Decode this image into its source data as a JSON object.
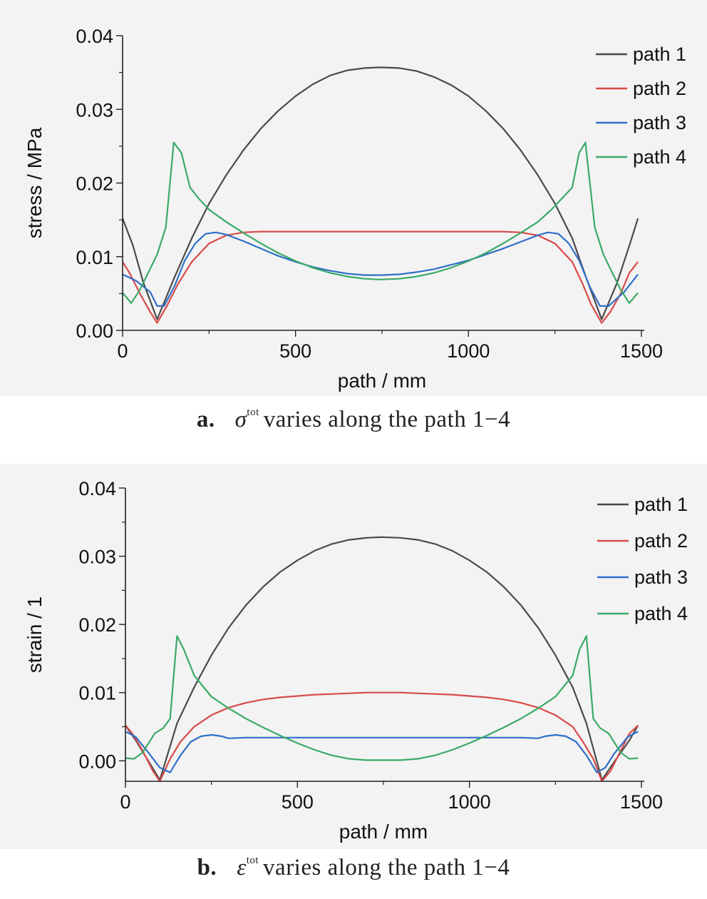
{
  "figures": [
    {
      "caption": {
        "letter": "a.",
        "symbol": "σ",
        "superscript": "tot",
        "text": "varies along the path 1−4"
      }
    },
    {
      "caption": {
        "letter": "b.",
        "symbol": "ε",
        "superscript": "tot",
        "text": "varies along the path 1−4"
      }
    }
  ],
  "chart_data": [
    {
      "type": "line",
      "title": "",
      "xlabel": "path / mm",
      "ylabel": "stress / MPa",
      "xlim": [
        0,
        1500
      ],
      "ylim": [
        0,
        0.04
      ],
      "xticks": [
        "0",
        "500",
        "1000",
        "1500"
      ],
      "yticks": [
        "0.00",
        "0.01",
        "0.02",
        "0.03",
        "0.04"
      ],
      "grid": false,
      "legend_position": "top-right",
      "colors": {
        "path 1": "#4a4a4a",
        "path 2": "#d94a4a",
        "path 3": "#2f6fc9",
        "path 4": "#3aaa68"
      },
      "series": [
        {
          "name": "path 1",
          "x": [
            0,
            30,
            60,
            100,
            150,
            200,
            250,
            300,
            350,
            400,
            450,
            500,
            550,
            600,
            650,
            700,
            745,
            800,
            850,
            900,
            950,
            1000,
            1050,
            1100,
            1150,
            1200,
            1250,
            1300,
            1340,
            1385,
            1430,
            1465,
            1490
          ],
          "values": [
            0.0152,
            0.0115,
            0.0065,
            0.0015,
            0.0072,
            0.0125,
            0.0172,
            0.0211,
            0.0245,
            0.0274,
            0.0298,
            0.0318,
            0.0334,
            0.0346,
            0.0353,
            0.0356,
            0.0357,
            0.0356,
            0.0352,
            0.0344,
            0.0333,
            0.0318,
            0.0298,
            0.0274,
            0.0245,
            0.0211,
            0.0172,
            0.0125,
            0.0072,
            0.0015,
            0.0065,
            0.0115,
            0.0152
          ]
        },
        {
          "name": "path 2",
          "x": [
            0,
            20,
            50,
            80,
            100,
            130,
            160,
            200,
            250,
            300,
            350,
            400,
            500,
            600,
            745,
            900,
            1000,
            1100,
            1150,
            1200,
            1250,
            1300,
            1330,
            1355,
            1385,
            1410,
            1440,
            1465,
            1490
          ],
          "values": [
            0.0093,
            0.0078,
            0.005,
            0.0025,
            0.001,
            0.0035,
            0.0063,
            0.0093,
            0.0118,
            0.0129,
            0.0133,
            0.0134,
            0.0134,
            0.0134,
            0.0134,
            0.0134,
            0.0134,
            0.0134,
            0.0133,
            0.0129,
            0.0118,
            0.0093,
            0.0063,
            0.0035,
            0.001,
            0.0025,
            0.005,
            0.0078,
            0.0093
          ]
        },
        {
          "name": "path 3",
          "x": [
            0,
            40,
            80,
            100,
            120,
            150,
            180,
            210,
            240,
            270,
            300,
            350,
            400,
            450,
            500,
            550,
            600,
            650,
            700,
            745,
            800,
            850,
            900,
            950,
            1000,
            1050,
            1100,
            1150,
            1200,
            1230,
            1260,
            1290,
            1320,
            1350,
            1380,
            1405,
            1450,
            1490
          ],
          "values": [
            0.0076,
            0.0067,
            0.0052,
            0.0033,
            0.0033,
            0.006,
            0.0095,
            0.0118,
            0.0131,
            0.0133,
            0.013,
            0.0121,
            0.0111,
            0.0101,
            0.0093,
            0.0086,
            0.0081,
            0.0077,
            0.0075,
            0.0075,
            0.0076,
            0.0079,
            0.0083,
            0.0089,
            0.0095,
            0.0103,
            0.0111,
            0.012,
            0.0129,
            0.0133,
            0.0131,
            0.0118,
            0.0095,
            0.006,
            0.0033,
            0.0033,
            0.0052,
            0.0076
          ]
        },
        {
          "name": "path 4",
          "x": [
            0,
            25,
            50,
            100,
            125,
            148,
            170,
            195,
            220,
            250,
            300,
            350,
            400,
            450,
            500,
            550,
            600,
            650,
            700,
            745,
            800,
            850,
            900,
            950,
            1000,
            1050,
            1100,
            1150,
            1200,
            1240,
            1270,
            1300,
            1320,
            1338,
            1365,
            1390,
            1440,
            1465,
            1490
          ],
          "values": [
            0.0051,
            0.0037,
            0.0055,
            0.0103,
            0.014,
            0.0255,
            0.0241,
            0.0194,
            0.0179,
            0.0164,
            0.0147,
            0.0132,
            0.0118,
            0.0105,
            0.0094,
            0.0085,
            0.0078,
            0.0073,
            0.007,
            0.0069,
            0.007,
            0.0073,
            0.0078,
            0.0085,
            0.0094,
            0.0105,
            0.0118,
            0.0132,
            0.0147,
            0.0164,
            0.0179,
            0.0194,
            0.0241,
            0.0255,
            0.014,
            0.0103,
            0.0055,
            0.0037,
            0.0051
          ]
        }
      ]
    },
    {
      "type": "line",
      "title": "",
      "xlabel": "path / mm",
      "ylabel": "strain / 1",
      "xlim": [
        0,
        1500
      ],
      "ylim": [
        -0.003,
        0.04
      ],
      "xticks": [
        "0",
        "500",
        "1000",
        "1500"
      ],
      "yticks": [
        "0.00",
        "0.01",
        "0.02",
        "0.03",
        "0.04"
      ],
      "grid": false,
      "legend_position": "top-right",
      "colors": {
        "path 1": "#4a4a4a",
        "path 2": "#d94a4a",
        "path 3": "#2f6fc9",
        "path 4": "#3aaa68"
      },
      "series": [
        {
          "name": "path 1",
          "x": [
            0,
            30,
            60,
            100,
            150,
            200,
            250,
            300,
            350,
            400,
            450,
            500,
            550,
            600,
            650,
            700,
            745,
            800,
            850,
            900,
            950,
            1000,
            1050,
            1100,
            1150,
            1200,
            1250,
            1300,
            1340,
            1385,
            1430,
            1465,
            1490
          ],
          "values": [
            0.0052,
            0.003,
            0.0005,
            -0.0028,
            0.0055,
            0.0108,
            0.0155,
            0.0195,
            0.0228,
            0.0255,
            0.0277,
            0.0294,
            0.0308,
            0.0318,
            0.0324,
            0.0327,
            0.0328,
            0.0327,
            0.0324,
            0.0318,
            0.0308,
            0.0294,
            0.0277,
            0.0255,
            0.0228,
            0.0195,
            0.0155,
            0.0108,
            0.0055,
            -0.0028,
            0.0005,
            0.003,
            0.0052
          ]
        },
        {
          "name": "path 2",
          "x": [
            0,
            20,
            50,
            80,
            100,
            130,
            160,
            200,
            250,
            300,
            350,
            400,
            450,
            500,
            550,
            600,
            650,
            700,
            745,
            800,
            850,
            900,
            950,
            1000,
            1050,
            1100,
            1150,
            1200,
            1250,
            1300,
            1330,
            1360,
            1385,
            1410,
            1440,
            1465,
            1490
          ],
          "values": [
            0.0052,
            0.004,
            0.0015,
            -0.0015,
            -0.003,
            0.0003,
            0.0028,
            0.005,
            0.0067,
            0.0078,
            0.0085,
            0.009,
            0.0093,
            0.0095,
            0.0097,
            0.0098,
            0.0099,
            0.01,
            0.01,
            0.01,
            0.0099,
            0.0098,
            0.0097,
            0.0095,
            0.0093,
            0.009,
            0.0085,
            0.0078,
            0.0067,
            0.005,
            0.0028,
            0.0003,
            -0.003,
            -0.0015,
            0.0015,
            0.004,
            0.0052
          ]
        },
        {
          "name": "path 3",
          "x": [
            0,
            30,
            70,
            100,
            130,
            160,
            190,
            220,
            250,
            280,
            300,
            350,
            450,
            600,
            745,
            900,
            1050,
            1150,
            1200,
            1220,
            1250,
            1280,
            1310,
            1340,
            1370,
            1395,
            1420,
            1460,
            1490
          ],
          "values": [
            0.0043,
            0.0035,
            0.001,
            -0.001,
            -0.0017,
            0.0008,
            0.0028,
            0.0036,
            0.0038,
            0.0036,
            0.0033,
            0.0034,
            0.0034,
            0.0034,
            0.0034,
            0.0034,
            0.0034,
            0.0034,
            0.0033,
            0.0036,
            0.0038,
            0.0036,
            0.0028,
            0.0008,
            -0.0017,
            -0.001,
            0.001,
            0.0035,
            0.0043
          ]
        },
        {
          "name": "path 4",
          "x": [
            0,
            25,
            50,
            85,
            110,
            130,
            150,
            170,
            200,
            250,
            300,
            350,
            400,
            450,
            500,
            550,
            600,
            650,
            700,
            745,
            800,
            850,
            900,
            950,
            1000,
            1050,
            1100,
            1150,
            1200,
            1250,
            1300,
            1320,
            1340,
            1360,
            1380,
            1405,
            1440,
            1465,
            1490
          ],
          "values": [
            0.0004,
            0.0003,
            0.0012,
            0.004,
            0.0048,
            0.0062,
            0.0183,
            0.0163,
            0.0125,
            0.0094,
            0.0077,
            0.0062,
            0.0049,
            0.0037,
            0.0026,
            0.0016,
            0.0008,
            0.0003,
            0.0001,
            0.0001,
            0.0001,
            0.0003,
            0.0008,
            0.0016,
            0.0026,
            0.0037,
            0.0049,
            0.0062,
            0.0077,
            0.0094,
            0.0125,
            0.0163,
            0.0183,
            0.0062,
            0.0048,
            0.004,
            0.0012,
            0.0003,
            0.0004
          ]
        }
      ]
    }
  ]
}
